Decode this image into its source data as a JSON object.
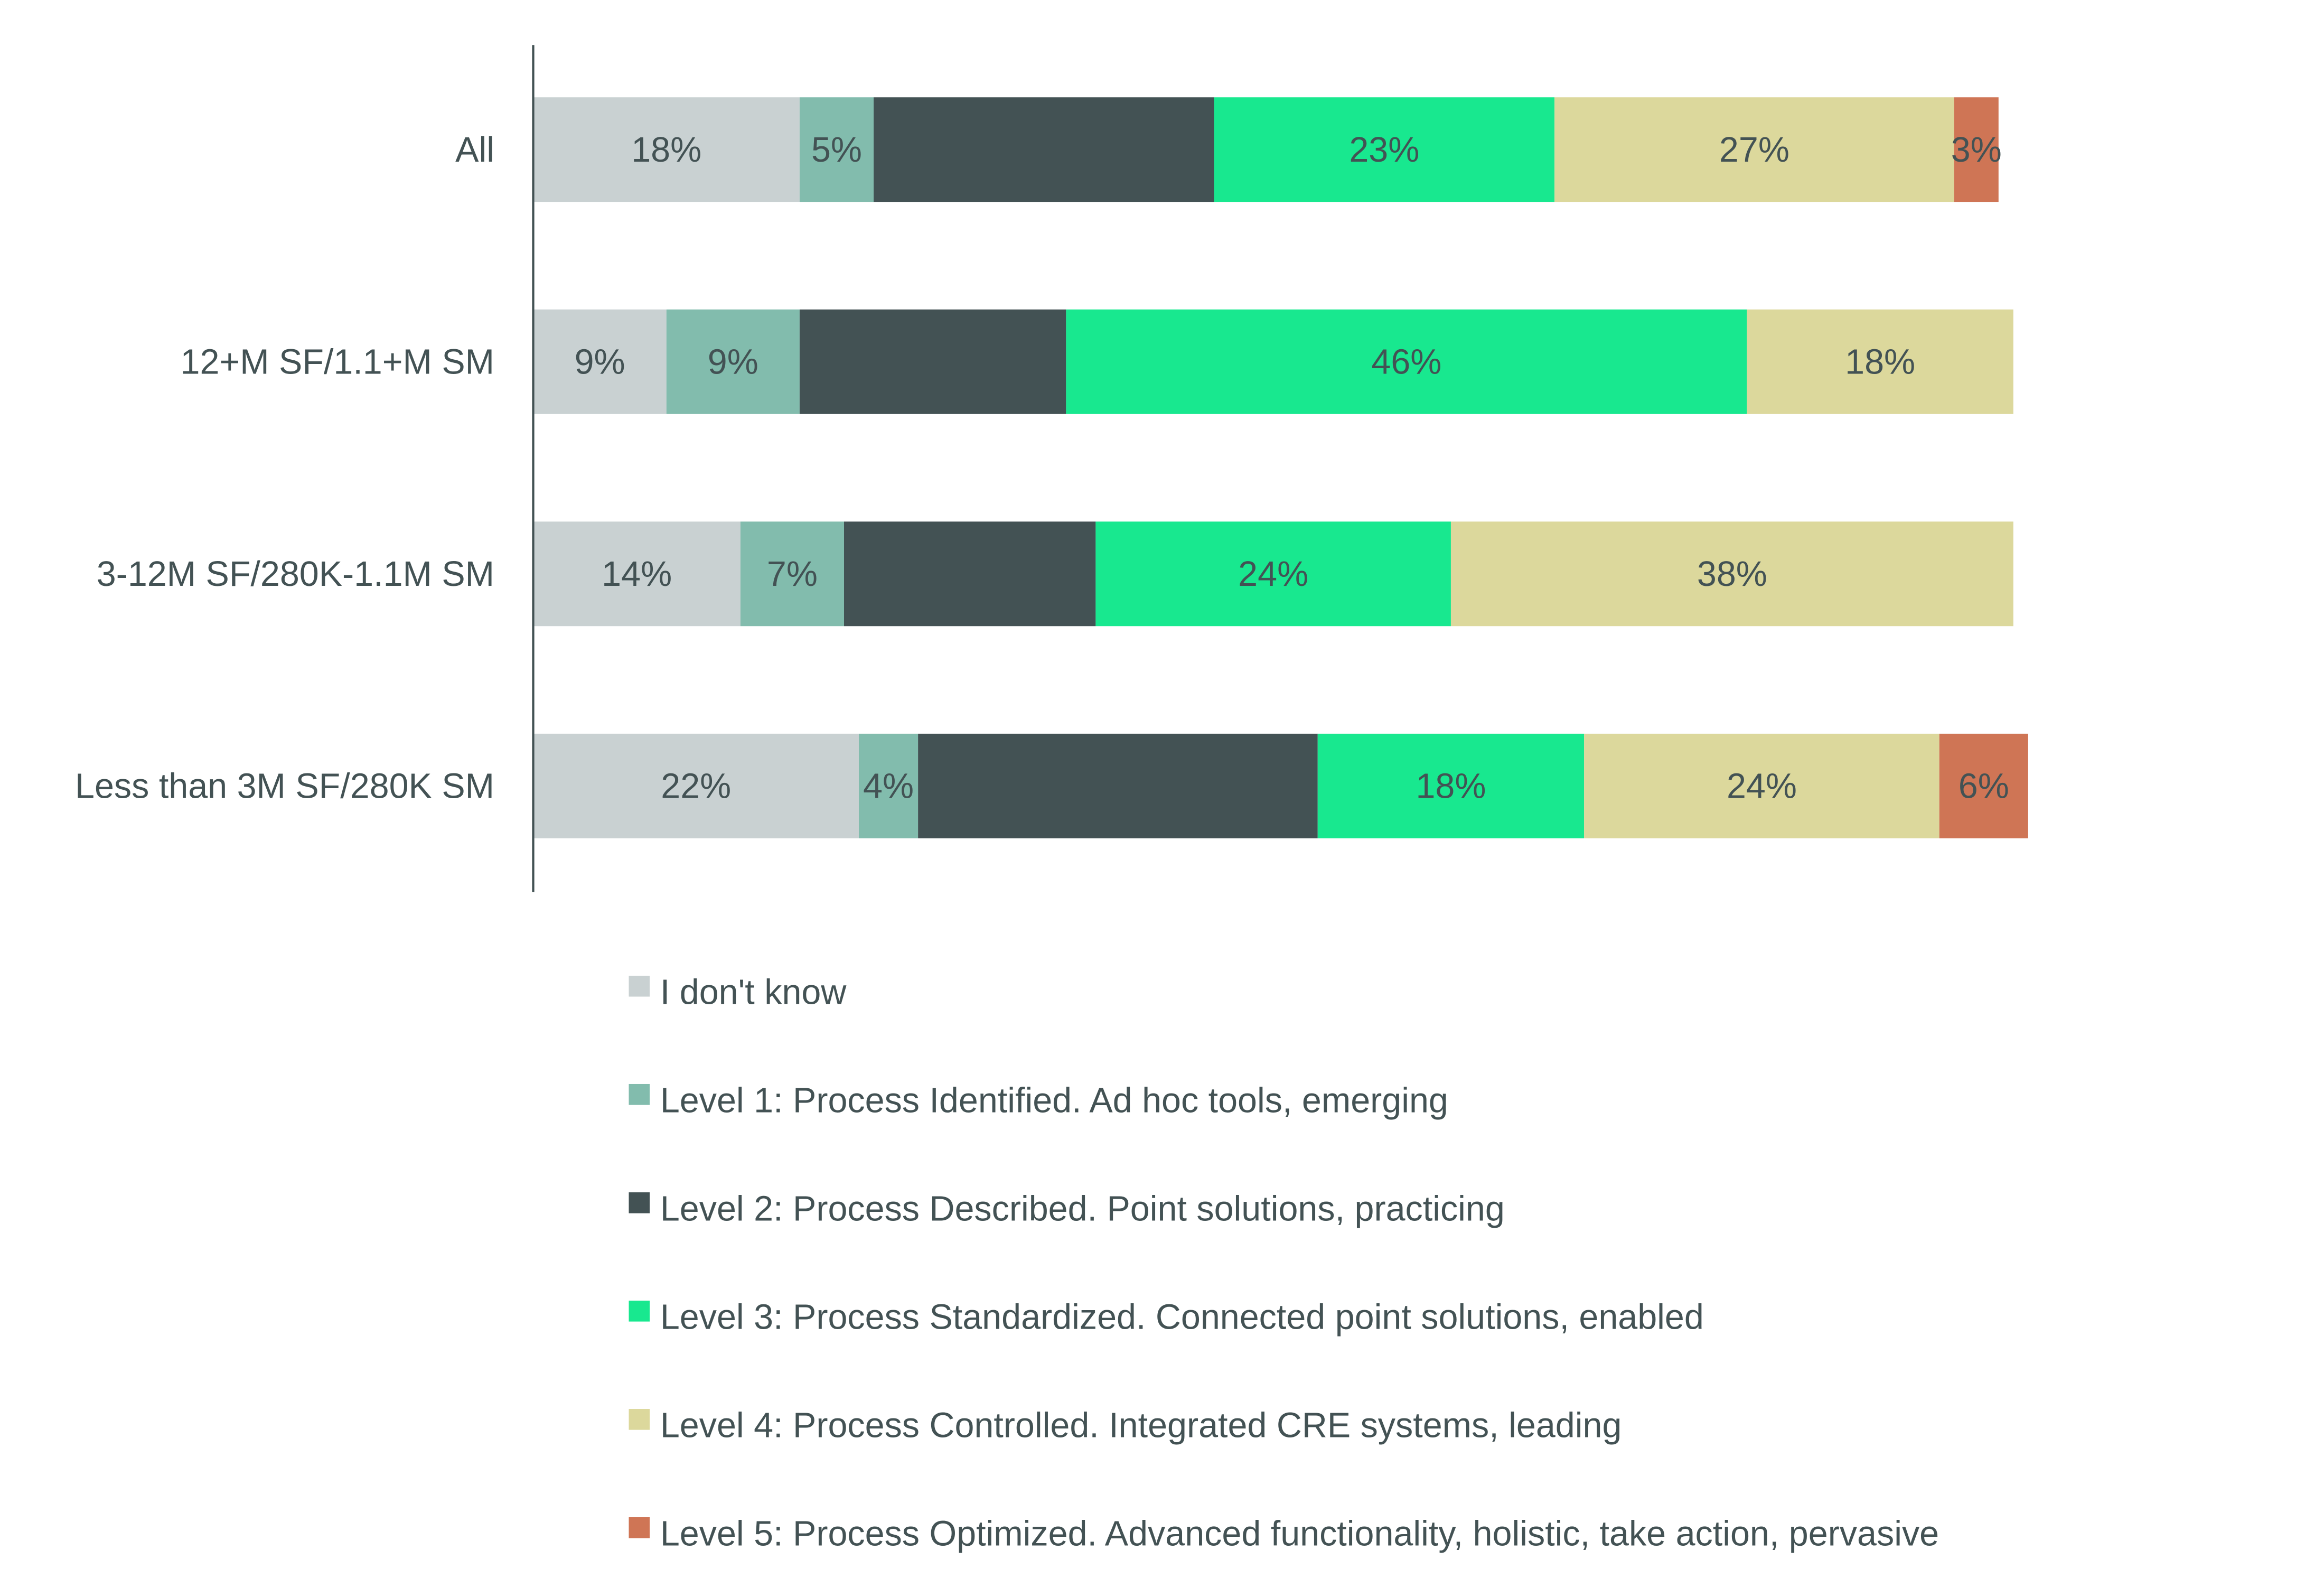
{
  "chart_data": {
    "type": "bar",
    "orientation": "horizontal",
    "stacked": true,
    "title": "",
    "xlabel": "",
    "ylabel": "",
    "xlim": [
      0,
      100
    ],
    "grid": false,
    "legend_position": "bottom",
    "categories": [
      "All",
      "12+M SF/1.1+M SM",
      "3-12M SF/280K-1.1M SM",
      "Less than 3M SF/280K SM"
    ],
    "series": [
      {
        "name": "I don't know",
        "color": "#C9D1D2",
        "values": [
          18,
          9,
          14,
          22
        ],
        "labels": [
          "18%",
          "9%",
          "14%",
          "22%"
        ]
      },
      {
        "name": "Level 1: Process Identified. Ad hoc tools, emerging",
        "color": "#82BCAD",
        "values": [
          5,
          9,
          7,
          4
        ],
        "labels": [
          "5%",
          "9%",
          "7%",
          "4%"
        ]
      },
      {
        "name": "Level 2: Process Described. Point solutions, practicing",
        "color": "#435254",
        "values": [
          23,
          18,
          17,
          27
        ],
        "labels": [
          "",
          "",
          "",
          ""
        ]
      },
      {
        "name": "Level 3: Process Standardized. Connected point solutions, enabled",
        "color": "#18E88F",
        "values": [
          23,
          46,
          24,
          18
        ],
        "labels": [
          "23%",
          "46%",
          "24%",
          "18%"
        ]
      },
      {
        "name": "Level 4: Process Controlled. Integrated CRE systems, leading",
        "color": "#DCD89C",
        "values": [
          27,
          18,
          38,
          24
        ],
        "labels": [
          "27%",
          "18%",
          "38%",
          "24%"
        ]
      },
      {
        "name": "Level 5: Process Optimized. Advanced functionality, holistic, take action, pervasive",
        "color": "#CF7555",
        "values": [
          3,
          0,
          0,
          6
        ],
        "labels": [
          "3%",
          "",
          "",
          "6%"
        ]
      }
    ]
  }
}
